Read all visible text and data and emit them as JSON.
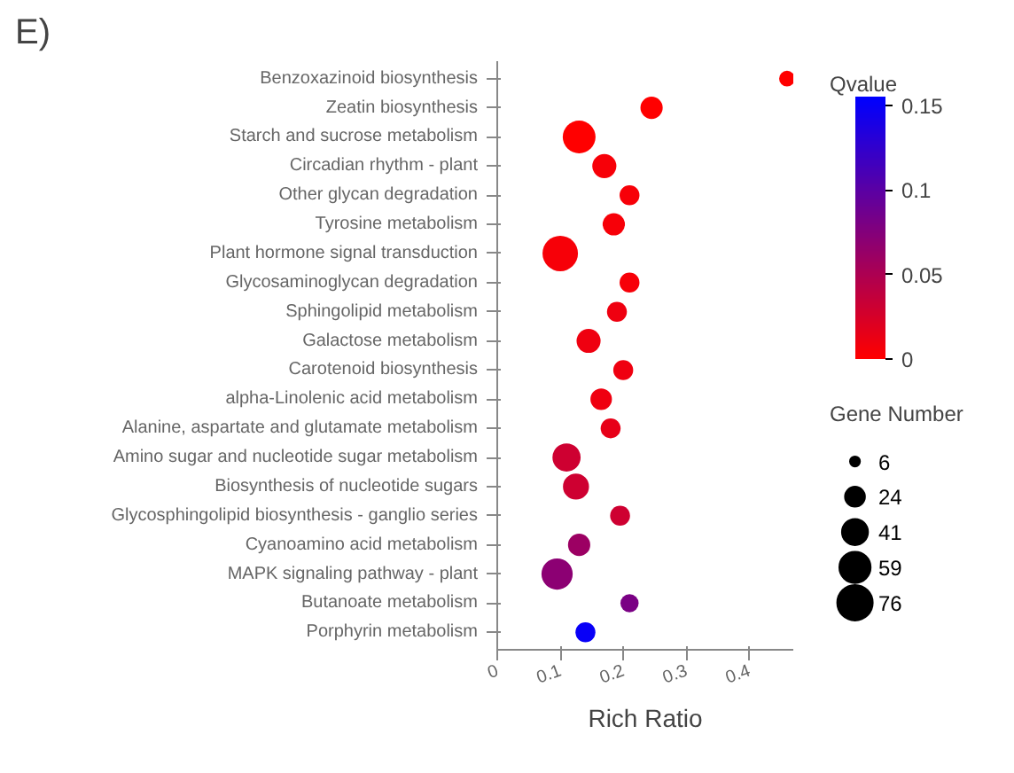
{
  "chart_data": {
    "type": "bubble",
    "xlabel": "Rich Ratio",
    "clabel": "Qvalue",
    "legend_title": "Gene Number",
    "annotations": [
      "E)"
    ],
    "categories": [
      "Benzoxazinoid biosynthesis",
      "Zeatin biosynthesis",
      "Starch and sucrose metabolism",
      "Circadian rhythm - plant",
      "Other glycan degradation",
      "Tyrosine metabolism",
      "Plant hormone signal transduction",
      "Glycosaminoglycan degradation",
      "Sphingolipid metabolism",
      "Galactose metabolism",
      "Carotenoid biosynthesis",
      "alpha-Linolenic acid metabolism",
      "Alanine, aspartate and glutamate metabolism",
      "Amino sugar and nucleotide sugar metabolism",
      "Biosynthesis of nucleotide sugars",
      "Glycosphingolipid biosynthesis - ganglio series",
      "Cyanoamino acid metabolism",
      "MAPK signaling pathway - plant",
      "Butanoate metabolism",
      "Porphyrin metabolism"
    ],
    "values": [
      0.46,
      0.245,
      0.13,
      0.17,
      0.21,
      0.185,
      0.1,
      0.21,
      0.19,
      0.145,
      0.2,
      0.165,
      0.18,
      0.11,
      0.125,
      0.195,
      0.13,
      0.095,
      0.21,
      0.14
    ],
    "sizes": [
      15,
      30,
      65,
      35,
      24,
      30,
      76,
      24,
      24,
      35,
      24,
      28,
      24,
      48,
      41,
      24,
      30,
      59,
      20,
      24
    ],
    "cvalues": [
      0,
      0,
      0,
      0.005,
      0.005,
      0.005,
      0.005,
      0.005,
      0.01,
      0.01,
      0.01,
      0.01,
      0.015,
      0.03,
      0.03,
      0.03,
      0.06,
      0.07,
      0.08,
      0.15
    ],
    "size_legend": [
      6,
      24,
      41,
      59,
      76
    ],
    "clim": [
      0,
      0.155
    ],
    "cticks": [
      0,
      0.05,
      0.1,
      0.15
    ],
    "orientation": "horizontal",
    "xlim": [
      0,
      0.47
    ],
    "xticks": [
      0,
      0.1,
      0.2,
      0.3,
      0.4
    ],
    "grid": false
  }
}
